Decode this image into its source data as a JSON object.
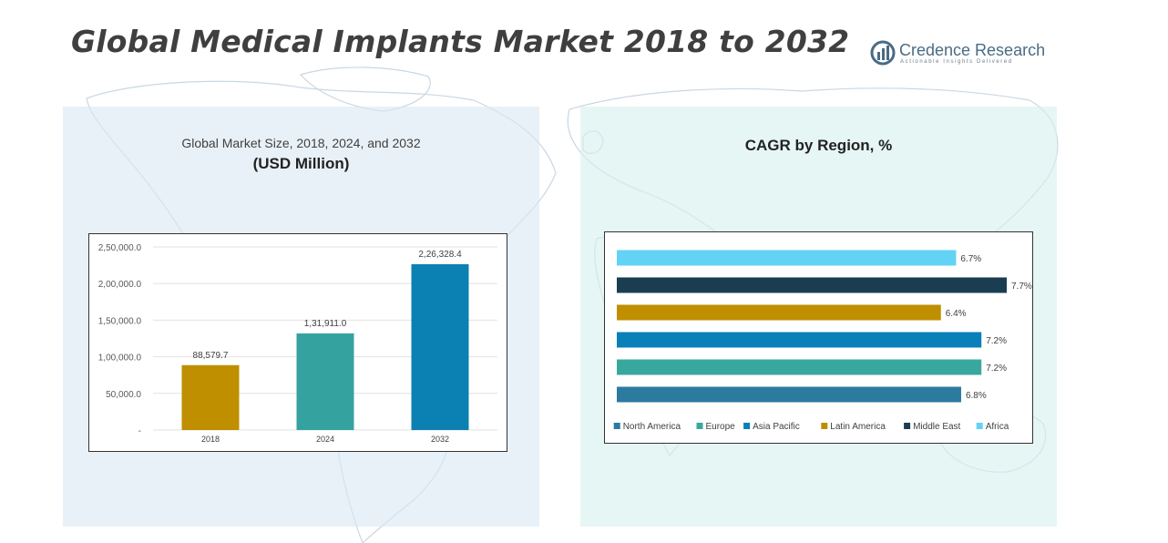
{
  "title": "Global Medical Implants Market 2018 to 2032",
  "logo": {
    "name": "Credence Research",
    "tagline": "Actionable Insights Delivered"
  },
  "left_panel": {
    "subtitle": "Global Market Size, 2018, 2024, and 2032",
    "unit": "(USD Million)"
  },
  "right_panel": {
    "title": "CAGR by Region, %"
  },
  "colors": {
    "panel_left": "#dae8f3",
    "panel_right": "#d7f1ee",
    "map": "#c9d7e2"
  },
  "chart_data": [
    {
      "type": "bar",
      "title": "Global Market Size, 2018, 2024, and 2032",
      "ylabel": "USD Million",
      "categories": [
        "2018",
        "2024",
        "2032"
      ],
      "values": [
        88579.7,
        131911.0,
        226328.4
      ],
      "data_labels": [
        "88,579.7",
        "1,31,911.0",
        "2,26,328.4"
      ],
      "colors": [
        "#bf8f00",
        "#34a3a0",
        "#0b80b2"
      ],
      "ylim": [
        0,
        250000
      ],
      "yticks": [
        0,
        50000,
        100000,
        150000,
        200000,
        250000
      ],
      "ytick_labels": [
        "-",
        "50,000.0",
        "1,00,000.0",
        "1,50,000.0",
        "2,00,000.0",
        "2,50,000.0"
      ],
      "grid": true
    },
    {
      "type": "bar",
      "orientation": "horizontal",
      "title": "CAGR by Region, %",
      "categories": [
        "North America",
        "Europe",
        "Asia Pacific",
        "Latin America",
        "Middle East",
        "Africa"
      ],
      "values": [
        6.8,
        7.2,
        7.2,
        6.4,
        7.7,
        6.7
      ],
      "data_labels": [
        "6.8%",
        "7.2%",
        "7.2%",
        "6.4%",
        "7.7%",
        "6.7%"
      ],
      "colors": [
        "#2c7aa0",
        "#38a89e",
        "#0a80b8",
        "#bf8f00",
        "#1a3d52",
        "#62d3f5"
      ],
      "xlim": [
        0,
        7.7
      ],
      "legend": "bottom"
    }
  ]
}
